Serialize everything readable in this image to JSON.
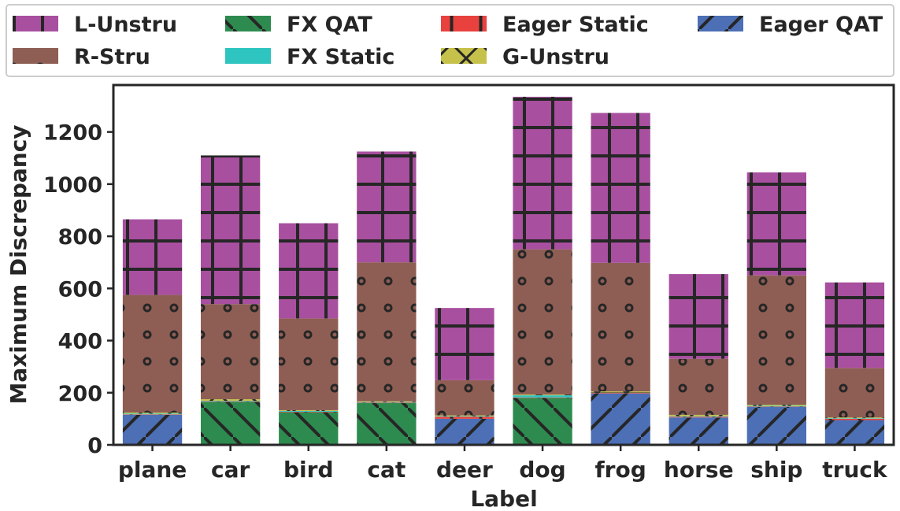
{
  "chart_data": {
    "type": "bar",
    "stacked": true,
    "xlabel": "Label",
    "ylabel": "Maximum Discrepancy",
    "ylim": [
      0,
      1380
    ],
    "yticks": [
      0,
      200,
      400,
      600,
      800,
      1000,
      1200
    ],
    "categories": [
      "plane",
      "car",
      "bird",
      "cat",
      "deer",
      "dog",
      "frog",
      "horse",
      "ship",
      "truck"
    ],
    "legend_position": "top",
    "series": [
      {
        "name": "Eager QAT",
        "color": "#4c6fb5",
        "hatch": "slash",
        "values": [
          115,
          0,
          0,
          0,
          100,
          0,
          197,
          105,
          145,
          95
        ]
      },
      {
        "name": "FX QAT",
        "color": "#2e8b4f",
        "hatch": "backslash",
        "values": [
          0,
          165,
          125,
          160,
          0,
          180,
          0,
          0,
          0,
          0
        ]
      },
      {
        "name": "Eager Static",
        "color": "#e8413e",
        "hatch": "vertical",
        "values": [
          2,
          2,
          2,
          2,
          8,
          2,
          2,
          3,
          2,
          5
        ]
      },
      {
        "name": "FX Static",
        "color": "#2ec4c0",
        "hatch": "horizontal",
        "values": [
          3,
          2,
          3,
          2,
          2,
          8,
          2,
          2,
          3,
          2
        ]
      },
      {
        "name": "G-Unstru",
        "color": "#c6c14b",
        "hatch": "cross",
        "values": [
          4,
          6,
          3,
          3,
          3,
          3,
          4,
          5,
          4,
          3
        ]
      },
      {
        "name": "R-Stru",
        "color": "#8e5e54",
        "hatch": "dots",
        "values": [
          451,
          365,
          352,
          533,
          135,
          557,
          493,
          215,
          496,
          190
        ]
      },
      {
        "name": "L-Unstru",
        "color": "#a84f9f",
        "hatch": "grid",
        "values": [
          290,
          570,
          365,
          425,
          277,
          585,
          575,
          325,
          395,
          328
        ]
      }
    ]
  }
}
